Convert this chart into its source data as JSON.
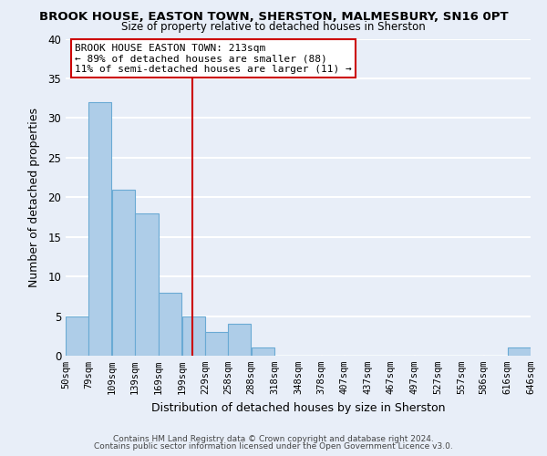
{
  "title": "BROOK HOUSE, EASTON TOWN, SHERSTON, MALMESBURY, SN16 0PT",
  "subtitle": "Size of property relative to detached houses in Sherston",
  "xlabel": "Distribution of detached houses by size in Sherston",
  "ylabel": "Number of detached properties",
  "bar_edges": [
    50,
    79,
    109,
    139,
    169,
    199,
    229,
    258,
    288,
    318,
    348,
    378,
    407,
    437,
    467,
    497,
    527,
    557,
    586,
    616,
    646
  ],
  "bar_heights": [
    5,
    32,
    21,
    18,
    8,
    5,
    3,
    4,
    1,
    0,
    0,
    0,
    0,
    0,
    0,
    0,
    0,
    0,
    0,
    1
  ],
  "bar_color": "#aecde8",
  "bar_edge_color": "#6aaad4",
  "vline_x": 213,
  "vline_color": "#cc0000",
  "ylim": [
    0,
    40
  ],
  "annotation_title": "BROOK HOUSE EASTON TOWN: 213sqm",
  "annotation_line1": "← 89% of detached houses are smaller (88)",
  "annotation_line2": "11% of semi-detached houses are larger (11) →",
  "annotation_box_color": "#ffffff",
  "annotation_box_edge": "#cc0000",
  "background_color": "#e8eef8",
  "grid_color": "#ffffff",
  "footer1": "Contains HM Land Registry data © Crown copyright and database right 2024.",
  "footer2": "Contains public sector information licensed under the Open Government Licence v3.0.",
  "tick_labels": [
    "50sqm",
    "79sqm",
    "109sqm",
    "139sqm",
    "169sqm",
    "199sqm",
    "229sqm",
    "258sqm",
    "288sqm",
    "318sqm",
    "348sqm",
    "378sqm",
    "407sqm",
    "437sqm",
    "467sqm",
    "497sqm",
    "527sqm",
    "557sqm",
    "586sqm",
    "616sqm",
    "646sqm"
  ]
}
